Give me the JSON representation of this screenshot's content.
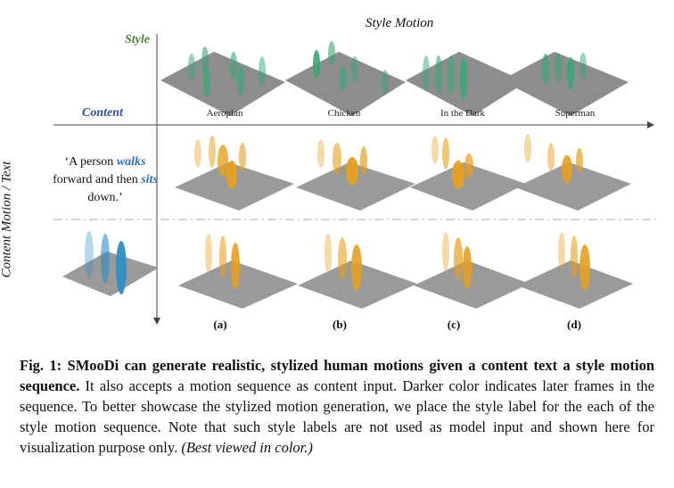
{
  "figure": {
    "column_header": "Style Motion",
    "row_label_style": "Style",
    "row_label_content": "Content",
    "vertical_label": "Content Motion / Text",
    "text_prompt": {
      "part1": "‘A person ",
      "kw1": "walks",
      "part2": " forward and then ",
      "kw2": "sits",
      "part3": " down.’"
    },
    "style_names": [
      "Aeroplan",
      "Chicken",
      "In the Dark",
      "Superman"
    ],
    "column_labels": [
      "(a)",
      "(b)",
      "(c)",
      "(d)"
    ],
    "colors": {
      "style_green": "#3aa678",
      "content_blue": "#2f8fc4",
      "output_orange": "#e6a020",
      "floor": "#9a9a9a"
    }
  },
  "caption": {
    "label": "Fig. 1: SMooDi can generate realistic, stylized human motions given a content text a style motion sequence.",
    "body": " It also accepts a motion sequence as content input. Darker color indicates later frames in the sequence. To better showcase the stylized motion generation, we place the style label for the each of the style motion sequence. Note that such style labels are not used as model input and shown here for visualization purpose only. ",
    "note": "(Best viewed in color.)"
  }
}
